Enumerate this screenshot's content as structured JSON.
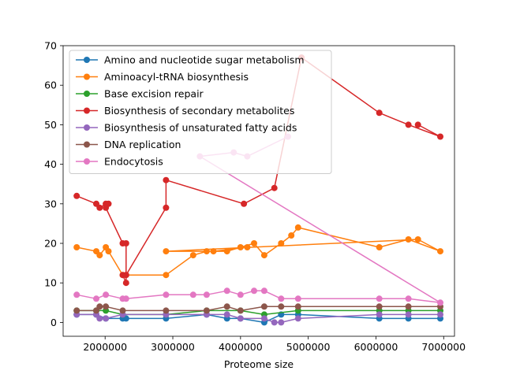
{
  "chart_data": {
    "type": "line",
    "title": "",
    "xlabel": "Proteome size",
    "ylabel": "",
    "xlim": [
      1380000,
      7160000
    ],
    "ylim": [
      -3.5,
      70
    ],
    "xticks": [
      2000000,
      3000000,
      4000000,
      5000000,
      6000000,
      7000000
    ],
    "yticks": [
      0,
      10,
      20,
      30,
      40,
      50,
      60,
      70
    ],
    "grid": false,
    "legend_position": "upper-left",
    "series": [
      {
        "name": "Amino and nucleotide sugar metabolism",
        "color": "#1f77b4",
        "x": [
          1580000,
          1870000,
          2010000,
          2260000,
          2310000,
          2900000,
          3500000,
          3800000,
          4000000,
          4350000,
          4600000,
          4850000,
          6050000,
          6480000,
          6950000
        ],
        "y": [
          2,
          2,
          1,
          1,
          1,
          1,
          2,
          1,
          1,
          0,
          2,
          2,
          1,
          1,
          1
        ]
      },
      {
        "name": "Aminoacyl-tRNA biosynthesis",
        "color": "#ff7f0e",
        "x": [
          1580000,
          1870000,
          1920000,
          2010000,
          2050000,
          2260000,
          2310000,
          2900000,
          3300000,
          3500000,
          3800000,
          4000000,
          4200000,
          4350000,
          4600000,
          4750000,
          4850000,
          6050000,
          6480000,
          6950000,
          6620000,
          2900000,
          3600000,
          4100000
        ],
        "y": [
          19,
          18,
          17,
          19,
          18,
          12,
          12,
          12,
          17,
          18,
          18,
          19,
          20,
          17,
          20,
          22,
          24,
          19,
          21,
          18,
          21,
          18,
          18,
          19
        ]
      },
      {
        "name": "Base excision  repair",
        "color": "#2ca02c",
        "x": [
          1580000,
          1870000,
          2010000,
          2260000,
          2900000,
          3500000,
          4000000,
          4350000,
          4850000,
          6050000,
          6480000,
          6950000
        ],
        "y": [
          3,
          3,
          3,
          2,
          2,
          3,
          3,
          2,
          3,
          3,
          3,
          3
        ]
      },
      {
        "name": "Biosynthesis of  secondary metabolites",
        "color": "#d62728",
        "x": [
          1580000,
          1870000,
          1920000,
          2010000,
          2050000,
          2010000,
          2260000,
          2310000,
          2310000,
          2260000,
          2310000,
          2900000,
          2900000,
          4050000,
          4500000,
          4900000,
          6050000,
          6480000,
          6950000,
          6620000
        ],
        "y": [
          32,
          30,
          29,
          30,
          30,
          29,
          20,
          20,
          10,
          12,
          12,
          29,
          36,
          30,
          34,
          67,
          53,
          50,
          47,
          50
        ]
      },
      {
        "name": "Biosynthesis of unsaturated fatty acids",
        "color": "#9467bd",
        "x": [
          1580000,
          1870000,
          1920000,
          2010000,
          2260000,
          2900000,
          3500000,
          3800000,
          4000000,
          4350000,
          4500000,
          4600000,
          4850000,
          6050000,
          6480000,
          6950000
        ],
        "y": [
          2,
          2,
          1,
          1,
          2,
          2,
          2,
          2,
          1,
          1,
          0,
          0,
          1,
          2,
          2,
          2
        ]
      },
      {
        "name": "DNA replication",
        "color": "#8c564b",
        "x": [
          1580000,
          1870000,
          1920000,
          2010000,
          2260000,
          2900000,
          3500000,
          3800000,
          4000000,
          4350000,
          4600000,
          4850000,
          6050000,
          6480000,
          6950000
        ],
        "y": [
          3,
          3,
          4,
          4,
          3,
          3,
          3,
          4,
          3,
          4,
          4,
          4,
          4,
          4,
          4
        ]
      },
      {
        "name": "Endocytosis",
        "color": "#e377c2",
        "x": [
          1580000,
          1870000,
          2010000,
          2260000,
          2310000,
          2900000,
          3300000,
          3500000,
          3800000,
          4000000,
          4200000,
          4350000,
          4600000,
          4850000,
          6050000,
          6480000,
          6950000,
          3400000,
          3900000,
          4100000,
          4700000
        ],
        "y": [
          7,
          6,
          7,
          6,
          6,
          7,
          7,
          7,
          8,
          7,
          8,
          8,
          6,
          6,
          6,
          6,
          5,
          42,
          43,
          42,
          47
        ]
      }
    ]
  }
}
